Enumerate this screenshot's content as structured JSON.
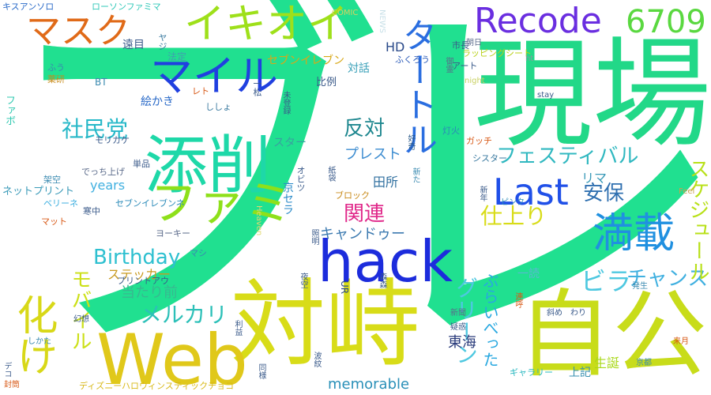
{
  "words": [
    {
      "text": "ブレ",
      "color": "#20e090"
    },
    {
      "text": "現場",
      "color": "#22d888"
    },
    {
      "text": "対峙",
      "color": "#d8dc18"
    },
    {
      "text": "自公",
      "color": "#c8dc1a"
    },
    {
      "text": "Web",
      "color": "#e0c81a"
    },
    {
      "text": "添削",
      "color": "#1ed8a8"
    },
    {
      "text": "hack",
      "color": "#1c2cdc"
    },
    {
      "text": "イキオイ",
      "color": "#9ee01a"
    },
    {
      "text": "Recode",
      "color": "#6a2ee0"
    },
    {
      "text": "6709",
      "color": "#5ad840"
    },
    {
      "text": "マイル",
      "color": "#2040e0"
    },
    {
      "text": "マスク",
      "color": "#e06a18"
    },
    {
      "text": "Last",
      "color": "#2050e8"
    },
    {
      "text": "満載",
      "color": "#2090e0"
    },
    {
      "text": "ファミ",
      "color": "#8ee01a"
    },
    {
      "text": "タートル",
      "color": "#2a6ee0"
    },
    {
      "text": "化け",
      "color": "#d8d818"
    },
    {
      "text": "ビラ",
      "color": "#4ec8e0"
    },
    {
      "text": "社民党",
      "color": "#26b8c8"
    },
    {
      "text": "Birthday",
      "color": "#2ec0d0"
    },
    {
      "text": "メルカリ",
      "color": "#2cc0b8"
    },
    {
      "text": "反対",
      "color": "#208890"
    },
    {
      "text": "安保",
      "color": "#3070b0"
    },
    {
      "text": "関連",
      "color": "#e0288a"
    },
    {
      "text": "仕上り",
      "color": "#d8dc18"
    },
    {
      "text": "フェスティバル",
      "color": "#30b8c0"
    },
    {
      "text": "プレスト",
      "color": "#3c8cd0"
    },
    {
      "text": "スター",
      "color": "#3aa0a0"
    },
    {
      "text": "モバイル",
      "color": "#cce018"
    },
    {
      "text": "グリーン",
      "color": "#4ec8e0"
    },
    {
      "text": "チャンス",
      "color": "#40b0e0"
    },
    {
      "text": "スケジュール",
      "color": "#b8e018"
    },
    {
      "text": "キャンドゥー",
      "color": "#3c7ab0"
    },
    {
      "text": "ぶらいべった",
      "color": "#28a8e0"
    },
    {
      "text": "memorable",
      "color": "#2a90b8"
    },
    {
      "text": "東海",
      "color": "#283a7a"
    },
    {
      "text": "HD",
      "color": "#2a4a8a"
    },
    {
      "text": "当たり前",
      "color": "#38b890"
    },
    {
      "text": "ステッカー",
      "color": "#c89a20"
    },
    {
      "text": "田所",
      "color": "#3070a0"
    },
    {
      "text": "years",
      "color": "#40b0e0"
    },
    {
      "text": "リマ",
      "color": "#3a9ab8"
    },
    {
      "text": "上記",
      "color": "#3890b0"
    },
    {
      "text": "生誕",
      "color": "#a8d818"
    },
    {
      "text": "一読",
      "color": "#5ab8d0"
    },
    {
      "text": "ローソンファミマ",
      "color": "#30c8b8"
    },
    {
      "text": "キスアンソロ",
      "color": "#2a6ac8"
    },
    {
      "text": "ネットプリント",
      "color": "#3a9ab8"
    },
    {
      "text": "セブンイレブン",
      "color": "#d8a818"
    },
    {
      "text": "ディズニーハロウィンスティックチョコ",
      "color": "#d8b818"
    },
    {
      "text": "ラッピングシート",
      "color": "#b8d018"
    },
    {
      "text": "プリントアウ",
      "color": "#3a5a8a"
    },
    {
      "text": "セブンイレブンネ",
      "color": "#2a8ab8"
    },
    {
      "text": "ギャラリー",
      "color": "#2ab8c0"
    },
    {
      "text": "COMIC",
      "color": "#d8d060"
    },
    {
      "text": "NEWS",
      "color": "#c8e0e8"
    },
    {
      "text": "市長",
      "color": "#3a5a8a"
    },
    {
      "text": "ヤジ",
      "color": "#3a7aa0"
    },
    {
      "text": "遠目",
      "color": "#3a5a8a"
    },
    {
      "text": "法定",
      "color": "#40a0b0"
    },
    {
      "text": "ふう",
      "color": "#3a8ab0"
    },
    {
      "text": "薬研",
      "color": "#c88a18"
    },
    {
      "text": "ファボ",
      "color": "#30c8b0"
    },
    {
      "text": "BT",
      "color": "#3a8ab0"
    },
    {
      "text": "絵かき",
      "color": "#2a6ac8"
    },
    {
      "text": "対話",
      "color": "#3aa0b8"
    },
    {
      "text": "アート",
      "color": "#3a5a8a"
    },
    {
      "text": "ふくろう",
      "color": "#2a5ab8"
    },
    {
      "text": "比例",
      "color": "#3a5a8a"
    },
    {
      "text": "レト",
      "color": "#d85a18"
    },
    {
      "text": "ししょ",
      "color": "#3a7aa0"
    },
    {
      "text": "一松",
      "color": "#3a5a8a"
    },
    {
      "text": "night",
      "color": "#c8d060"
    },
    {
      "text": "ht",
      "color": "#8a9aa0"
    },
    {
      "text": "stay",
      "color": "#3a5a8a"
    },
    {
      "text": "朝日",
      "color": "#5a6a8a"
    },
    {
      "text": "御霊",
      "color": "#5a6a8a"
    },
    {
      "text": "灯火",
      "color": "#2a8ab8"
    },
    {
      "text": "好奇",
      "color": "#2a5a8a"
    },
    {
      "text": "ガッチ",
      "color": "#d85a18"
    },
    {
      "text": "シスター",
      "color": "#3a7aa0"
    },
    {
      "text": "紙袋",
      "color": "#3a5a8a"
    },
    {
      "text": "モリカケ",
      "color": "#3a5a8a"
    },
    {
      "text": "でっち上げ",
      "color": "#5a6a8a"
    },
    {
      "text": "単品",
      "color": "#3a5a8a"
    },
    {
      "text": "架空",
      "color": "#3a8ab0"
    },
    {
      "text": "ベリーネ",
      "color": "#40b0e0"
    },
    {
      "text": "寒中",
      "color": "#3a5a8a"
    },
    {
      "text": "マット",
      "color": "#d85a18"
    },
    {
      "text": "ヨーキー",
      "color": "#5a6a8a"
    },
    {
      "text": "マシ",
      "color": "#3a8ab0"
    },
    {
      "text": "オビツ",
      "color": "#3a5a8a"
    },
    {
      "text": "京セラ",
      "color": "#2a8ac8"
    },
    {
      "text": "ブロック",
      "color": "#c88a18"
    },
    {
      "text": "新た",
      "color": "#3a8ab0"
    },
    {
      "text": "新年",
      "color": "#3a5a8a"
    },
    {
      "text": "ピンク",
      "color": "#2a8ab8"
    },
    {
      "text": "Feel",
      "color": "#c8a050"
    },
    {
      "text": "Heaven",
      "color": "#e0d870"
    },
    {
      "text": "照明",
      "color": "#3a5a8a"
    },
    {
      "text": "夜空",
      "color": "#3a5a8a"
    },
    {
      "text": "森森",
      "color": "#3a5a8a"
    },
    {
      "text": "UR",
      "color": "#2a4a8a"
    },
    {
      "text": "新聞",
      "color": "#5a6a8a"
    },
    {
      "text": "疑惑",
      "color": "#3a5a8a"
    },
    {
      "text": "斜め",
      "color": "#3a5a8a"
    },
    {
      "text": "わり",
      "color": "#3a5a8a"
    },
    {
      "text": "連呼",
      "color": "#d85a18"
    },
    {
      "text": "発生",
      "color": "#3a8ab0"
    },
    {
      "text": "来月",
      "color": "#d85a18"
    },
    {
      "text": "京都",
      "color": "#3a8ab0"
    },
    {
      "text": "波紋",
      "color": "#3a5a8a"
    },
    {
      "text": "同様",
      "color": "#3a5a8a"
    },
    {
      "text": "利益",
      "color": "#3a5a8a"
    },
    {
      "text": "幻想",
      "color": "#3a5a8a"
    },
    {
      "text": "しかた",
      "color": "#3a8ab0"
    },
    {
      "text": "デコ",
      "color": "#3a5a8a"
    },
    {
      "text": "封筒",
      "color": "#d85a18"
    },
    {
      "text": "未登録",
      "color": "#3a5a8a"
    }
  ]
}
